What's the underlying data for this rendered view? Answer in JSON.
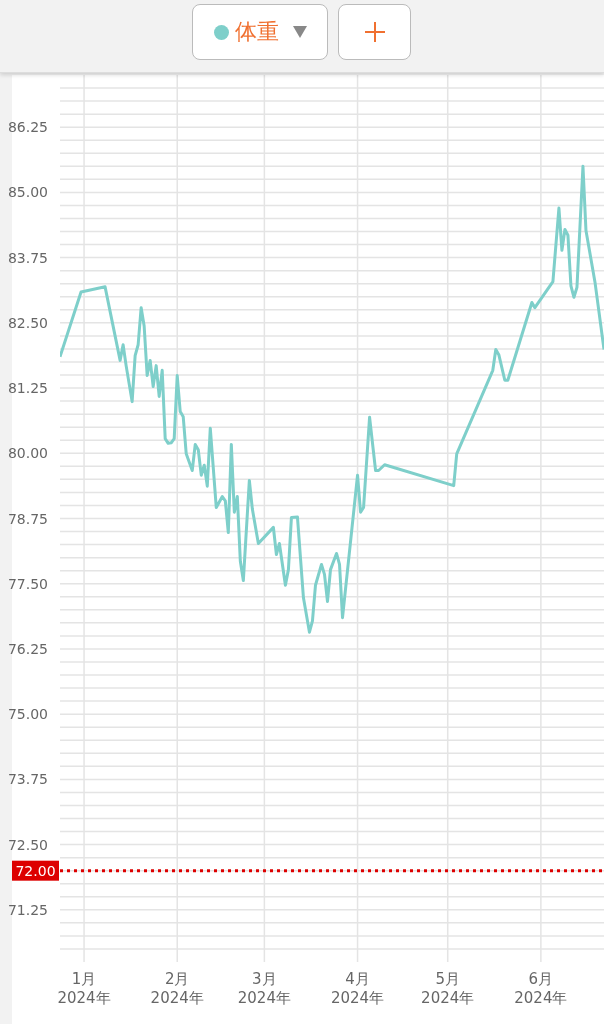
{
  "chart_data": {
    "type": "line",
    "legend": "top",
    "grid": true,
    "marker": "none",
    "line_style": "solid",
    "x": [
      "2023-12-24",
      "2023-12-31",
      "2024-01-08",
      "2024-01-13",
      "2024-01-14",
      "2024-01-15",
      "2024-01-17",
      "2024-01-18",
      "2024-01-19",
      "2024-01-20",
      "2024-01-21",
      "2024-01-22",
      "2024-01-23",
      "2024-01-24",
      "2024-01-25",
      "2024-01-26",
      "2024-01-27",
      "2024-01-28",
      "2024-01-29",
      "2024-01-30",
      "2024-01-31",
      "2024-02-01",
      "2024-02-02",
      "2024-02-03",
      "2024-02-04",
      "2024-02-06",
      "2024-02-07",
      "2024-02-08",
      "2024-02-09",
      "2024-02-10",
      "2024-02-11",
      "2024-02-12",
      "2024-02-14",
      "2024-02-16",
      "2024-02-17",
      "2024-02-18",
      "2024-02-19",
      "2024-02-20",
      "2024-02-21",
      "2024-02-22",
      "2024-02-23",
      "2024-02-25",
      "2024-02-26",
      "2024-02-28",
      "2024-03-04",
      "2024-03-05",
      "2024-03-06",
      "2024-03-08",
      "2024-03-09",
      "2024-03-10",
      "2024-03-12",
      "2024-03-14",
      "2024-03-16",
      "2024-03-17",
      "2024-03-18",
      "2024-03-20",
      "2024-03-21",
      "2024-03-22",
      "2024-03-23",
      "2024-03-25",
      "2024-03-26",
      "2024-03-27",
      "2024-04-01",
      "2024-04-02",
      "2024-04-03",
      "2024-04-05",
      "2024-04-07",
      "2024-04-08",
      "2024-04-10",
      "2024-05-03",
      "2024-05-04",
      "2024-05-16",
      "2024-05-17",
      "2024-05-18",
      "2024-05-20",
      "2024-05-21",
      "2024-05-29",
      "2024-05-30",
      "2024-06-05",
      "2024-06-07",
      "2024-06-08",
      "2024-06-09",
      "2024-06-10",
      "2024-06-11",
      "2024-06-12",
      "2024-06-13",
      "2024-06-15",
      "2024-06-16",
      "2024-06-19",
      "2024-06-22"
    ],
    "series": [
      {
        "name": "体重",
        "color": "#7ecfca",
        "values": [
          81.85,
          83.09,
          83.19,
          81.78,
          82.08,
          81.68,
          80.99,
          81.87,
          82.08,
          82.79,
          82.44,
          81.49,
          81.78,
          81.28,
          81.68,
          81.09,
          81.59,
          80.28,
          80.19,
          80.2,
          80.28,
          81.49,
          80.8,
          80.7,
          79.99,
          79.67,
          80.17,
          80.07,
          79.58,
          79.77,
          79.37,
          80.48,
          78.96,
          79.17,
          79.09,
          78.48,
          80.17,
          78.87,
          79.17,
          77.93,
          77.56,
          79.48,
          78.93,
          78.27,
          78.58,
          78.06,
          78.27,
          77.47,
          77.77,
          78.77,
          78.78,
          77.23,
          76.57,
          76.79,
          77.47,
          77.87,
          77.68,
          77.16,
          77.77,
          78.08,
          77.87,
          76.85,
          79.58,
          78.87,
          78.96,
          80.69,
          79.67,
          79.67,
          79.78,
          79.38,
          79.99,
          81.59,
          81.99,
          81.89,
          81.4,
          81.4,
          82.89,
          82.79,
          83.29,
          84.7,
          83.89,
          84.29,
          84.18,
          83.21,
          82.99,
          83.18,
          85.5,
          84.27,
          83.28,
          81.99
        ]
      }
    ],
    "xlim": [
      "2023-12-24",
      "2024-06-22"
    ],
    "xticks": [
      {
        "value": "2024-01-01",
        "label": "1月\n2024年"
      },
      {
        "value": "2024-02-01",
        "label": "2月\n2024年"
      },
      {
        "value": "2024-03-01",
        "label": "3月\n2024年"
      },
      {
        "value": "2024-04-01",
        "label": "4月\n2024年"
      },
      {
        "value": "2024-05-01",
        "label": "5月\n2024年"
      },
      {
        "value": "2024-06-01",
        "label": "6月\n2024年"
      }
    ],
    "ylim": [
      70.25,
      87.25
    ],
    "yticks": [
      {
        "value": 70.5,
        "label": null
      },
      {
        "value": 70.75,
        "label": null
      },
      {
        "value": 71,
        "label": null
      },
      71.25,
      {
        "value": 71.5,
        "label": null
      },
      {
        "value": 71.75,
        "label": null
      },
      {
        "value": 72,
        "label": null
      },
      {
        "value": 72.25,
        "label": null
      },
      {
        "value": 72.5,
        "label": "72.50"
      },
      {
        "value": 72.75,
        "label": null
      },
      {
        "value": 73,
        "label": null
      },
      {
        "value": 73.25,
        "label": null
      },
      {
        "value": 73.5,
        "label": null
      },
      73.75,
      {
        "value": 74,
        "label": null
      },
      {
        "value": 74.25,
        "label": null
      },
      {
        "value": 74.5,
        "label": null
      },
      {
        "value": 74.75,
        "label": null
      },
      {
        "value": 75,
        "label": "75.00"
      },
      {
        "value": 75.25,
        "label": null
      },
      {
        "value": 75.5,
        "label": null
      },
      {
        "value": 75.75,
        "label": null
      },
      {
        "value": 76,
        "label": null
      },
      76.25,
      {
        "value": 76.5,
        "label": null
      },
      {
        "value": 76.75,
        "label": null
      },
      {
        "value": 77,
        "label": null
      },
      {
        "value": 77.25,
        "label": null
      },
      {
        "value": 77.5,
        "label": "77.50"
      },
      {
        "value": 77.75,
        "label": null
      },
      {
        "value": 78,
        "label": null
      },
      {
        "value": 78.25,
        "label": null
      },
      {
        "value": 78.5,
        "label": null
      },
      78.75,
      {
        "value": 79,
        "label": null
      },
      {
        "value": 79.25,
        "label": null
      },
      {
        "value": 79.5,
        "label": null
      },
      {
        "value": 79.75,
        "label": null
      },
      {
        "value": 80,
        "label": "80.00"
      },
      {
        "value": 80.25,
        "label": null
      },
      {
        "value": 80.5,
        "label": null
      },
      {
        "value": 80.75,
        "label": null
      },
      {
        "value": 81,
        "label": null
      },
      81.25,
      {
        "value": 81.5,
        "label": null
      },
      {
        "value": 81.75,
        "label": null
      },
      {
        "value": 82,
        "label": null
      },
      {
        "value": 82.25,
        "label": null
      },
      {
        "value": 82.5,
        "label": "82.50"
      },
      {
        "value": 82.75,
        "label": null
      },
      {
        "value": 83,
        "label": null
      },
      {
        "value": 83.25,
        "label": null
      },
      {
        "value": 83.5,
        "label": null
      },
      83.75,
      {
        "value": 84,
        "label": null
      },
      {
        "value": 84.25,
        "label": null
      },
      {
        "value": 84.5,
        "label": null
      },
      {
        "value": 84.75,
        "label": null
      },
      {
        "value": 85,
        "label": "85.00"
      },
      {
        "value": 85.25,
        "label": null
      },
      {
        "value": 85.5,
        "label": null
      },
      {
        "value": 85.75,
        "label": null
      },
      {
        "value": 86,
        "label": null
      },
      86.25,
      {
        "value": 86.5,
        "label": null
      },
      {
        "value": 86.75,
        "label": null
      },
      {
        "value": 87,
        "label": null
      }
    ],
    "ref_lines": [
      {
        "axis": "y",
        "value": 72,
        "label": "72.00",
        "color": "#dd0000",
        "line_style": "dotted"
      }
    ]
  }
}
